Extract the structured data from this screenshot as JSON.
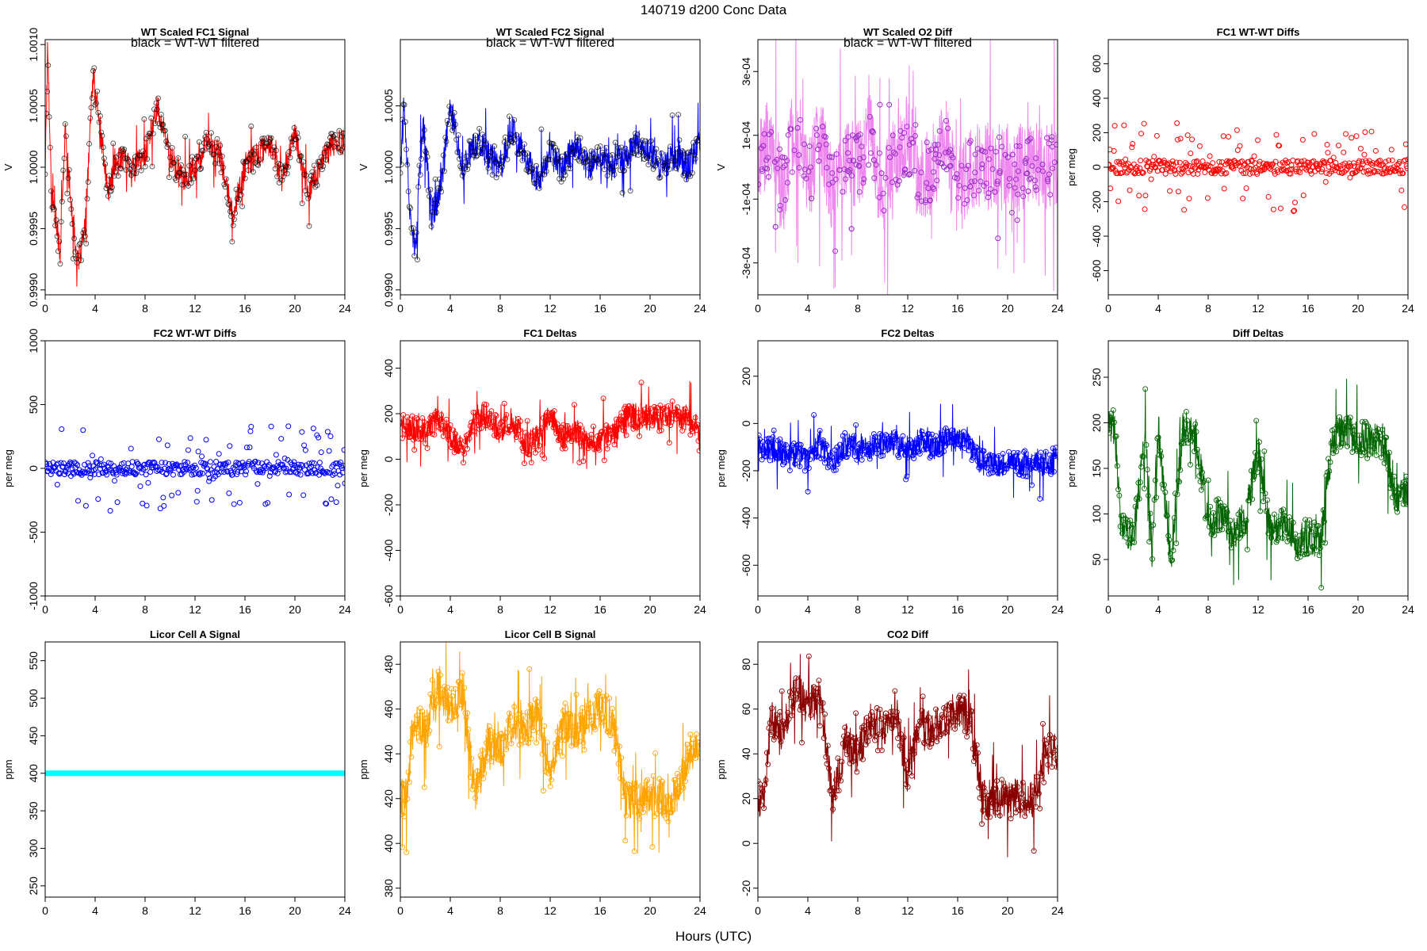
{
  "page": {
    "title": "140719    d200    Conc Data",
    "xlabel": "Hours (UTC)"
  },
  "chart_data": [
    {
      "id": "p1",
      "type": "line",
      "title": "WT Scaled FC1 Signal",
      "annotation": "black = WT-WT filtered",
      "ylabel": "V",
      "xlim": [
        0,
        24
      ],
      "ylim": [
        0.99896,
        1.00104
      ],
      "xticks": [
        0,
        4,
        8,
        12,
        16,
        20,
        24
      ],
      "yticks": [
        0.999,
        0.9995,
        1.0,
        1.0005,
        1.001
      ],
      "ytick_labels": [
        "0.9990",
        "0.9995",
        "1.0000",
        "1.0005",
        "1.0010"
      ],
      "color": "#ff0000",
      "overlay_color": "#000000",
      "anchors": [
        [
          0,
          1.0
        ],
        [
          0.2,
          1.001
        ],
        [
          0.5,
          0.9998
        ],
        [
          0.8,
          0.9996
        ],
        [
          1.2,
          0.9993
        ],
        [
          1.6,
          1.0003
        ],
        [
          2.0,
          0.9998
        ],
        [
          2.6,
          0.9992
        ],
        [
          3.2,
          0.9995
        ],
        [
          3.8,
          1.0007
        ],
        [
          4.2,
          1.0005
        ],
        [
          5,
          0.9998
        ],
        [
          6,
          1.0001
        ],
        [
          7,
          1.0
        ],
        [
          8,
          1.0001
        ],
        [
          9,
          1.0005
        ],
        [
          10,
          1.0001
        ],
        [
          11,
          0.9999
        ],
        [
          12,
          1.0
        ],
        [
          13,
          1.0002
        ],
        [
          14,
          1.0001
        ],
        [
          15,
          0.9996
        ],
        [
          16,
          1.0
        ],
        [
          17,
          1.0001
        ],
        [
          18,
          1.0002
        ],
        [
          19,
          0.9999
        ],
        [
          20,
          1.0003
        ],
        [
          21,
          0.9998
        ],
        [
          22,
          1.0
        ],
        [
          23,
          1.0002
        ],
        [
          24,
          1.0002
        ]
      ],
      "noise": 0.00022,
      "markers": true,
      "pattern": "line",
      "points": []
    },
    {
      "id": "p2",
      "type": "line",
      "title": "WT Scaled FC2 Signal",
      "annotation": "black = WT-WT filtered",
      "ylabel": "V",
      "xlim": [
        0,
        24
      ],
      "ylim": [
        0.99896,
        1.00104
      ],
      "xticks": [
        0,
        4,
        8,
        12,
        16,
        20,
        24
      ],
      "yticks": [
        0.999,
        0.9995,
        1.0,
        1.0005
      ],
      "ytick_labels": [
        "0.9990",
        "0.9995",
        "1.0000",
        "1.0005"
      ],
      "color": "#0000ff",
      "overlay_color": "#000000",
      "anchors": [
        [
          0,
          1.0
        ],
        [
          0.3,
          1.0005
        ],
        [
          0.8,
          0.9996
        ],
        [
          1.2,
          0.9993
        ],
        [
          1.8,
          1.0004
        ],
        [
          2.5,
          0.9996
        ],
        [
          3.2,
          0.9998
        ],
        [
          4,
          1.0005
        ],
        [
          5,
          1.0
        ],
        [
          6,
          1.0002
        ],
        [
          7,
          1.0001
        ],
        [
          8,
          1.0
        ],
        [
          9,
          1.0003
        ],
        [
          10,
          1.0001
        ],
        [
          11,
          0.9999
        ],
        [
          12,
          1.0001
        ],
        [
          13,
          1.0
        ],
        [
          14,
          1.0002
        ],
        [
          15,
          1.0
        ],
        [
          16,
          1.0001
        ],
        [
          17,
          1.0
        ],
        [
          18,
          1.0001
        ],
        [
          19,
          1.0002
        ],
        [
          20,
          1.0001
        ],
        [
          21,
          1.0
        ],
        [
          22,
          1.0001
        ],
        [
          23,
          1.0
        ],
        [
          24,
          1.0002
        ]
      ],
      "noise": 0.00025,
      "markers": true,
      "pattern": "line",
      "points": []
    },
    {
      "id": "p3",
      "type": "area",
      "title": "WT Scaled O2 Diff",
      "annotation": "black = WT-WT filtered",
      "ylabel": "V",
      "xlim": [
        0,
        24
      ],
      "ylim": [
        -0.0004,
        0.0004
      ],
      "xticks": [
        0,
        4,
        8,
        12,
        16,
        20,
        24
      ],
      "yticks": [
        -0.0003,
        -0.0001,
        0.0001,
        0.0003
      ],
      "ytick_labels": [
        "-3e-04",
        "-1e-04",
        "1e-04",
        "3e-04"
      ],
      "color": "#ee82ee",
      "overlay_color": "#9b30c8",
      "anchors": [
        [
          0,
          0.0
        ],
        [
          1,
          0.0001
        ],
        [
          2,
          -0.0001
        ],
        [
          3,
          0.00015
        ],
        [
          4,
          -5e-05
        ],
        [
          5,
          0.0001
        ],
        [
          6,
          -0.0001
        ],
        [
          7,
          5e-05
        ],
        [
          8,
          0.0
        ],
        [
          9,
          0.0001
        ],
        [
          10,
          -0.0001
        ],
        [
          11,
          5e-05
        ],
        [
          12,
          0.0001
        ],
        [
          13,
          -5e-05
        ],
        [
          14,
          0.0
        ],
        [
          15,
          0.0001
        ],
        [
          16,
          -0.0001
        ],
        [
          17,
          0.0
        ],
        [
          18,
          0.0
        ],
        [
          19,
          0.0
        ],
        [
          20,
          0.0
        ],
        [
          21,
          0.0
        ],
        [
          22,
          0.0
        ],
        [
          23,
          0.0
        ],
        [
          24,
          0.0
        ]
      ],
      "noise": 0.00028,
      "markers": true,
      "pattern": "band",
      "points": []
    },
    {
      "id": "p4",
      "type": "scatter",
      "title": "FC1 WT-WT Diffs",
      "ylabel": "per meg",
      "xlim": [
        0,
        24
      ],
      "ylim": [
        -740,
        740
      ],
      "xticks": [
        0,
        4,
        8,
        12,
        16,
        20,
        24
      ],
      "yticks": [
        -600,
        -400,
        -200,
        0,
        200,
        400,
        600
      ],
      "ytick_labels": [
        "-600",
        "-400",
        "-200",
        "0",
        "200",
        "400",
        "600"
      ],
      "color": "#ff0000",
      "anchors": [
        [
          0,
          0
        ],
        [
          24,
          0
        ]
      ],
      "noise": 320,
      "markers": true,
      "pattern": "scatter",
      "points": []
    },
    {
      "id": "p5",
      "type": "scatter",
      "title": "FC2 WT-WT Diffs",
      "ylabel": "per meg",
      "xlim": [
        0,
        24
      ],
      "ylim": [
        -1000,
        1000
      ],
      "xticks": [
        0,
        4,
        8,
        12,
        16,
        20,
        24
      ],
      "yticks": [
        -1000,
        -500,
        0,
        500,
        1000
      ],
      "ytick_labels": [
        "-1000",
        "-500",
        "0",
        "500",
        "1000"
      ],
      "hlines": [
        1000,
        -1000
      ],
      "color": "#0000ff",
      "anchors": [
        [
          0,
          0
        ],
        [
          24,
          0
        ]
      ],
      "noise": 420,
      "markers": true,
      "pattern": "scatter",
      "points": []
    },
    {
      "id": "p6",
      "type": "line",
      "title": "FC1 Deltas",
      "ylabel": "per meg",
      "xlim": [
        0,
        24
      ],
      "ylim": [
        -600,
        520
      ],
      "xticks": [
        0,
        4,
        8,
        12,
        16,
        20,
        24
      ],
      "yticks": [
        -600,
        -400,
        -200,
        0,
        200,
        400
      ],
      "ytick_labels": [
        "-600",
        "-400",
        "-200",
        "0",
        "200",
        "400"
      ],
      "color": "#ff0000",
      "anchors": [
        [
          0,
          150
        ],
        [
          2,
          120
        ],
        [
          3,
          180
        ],
        [
          4,
          100
        ],
        [
          5,
          50
        ],
        [
          6,
          190
        ],
        [
          7,
          180
        ],
        [
          8,
          120
        ],
        [
          9,
          180
        ],
        [
          10,
          60
        ],
        [
          11,
          90
        ],
        [
          12,
          200
        ],
        [
          13,
          100
        ],
        [
          14,
          120
        ],
        [
          15,
          80
        ],
        [
          16,
          90
        ],
        [
          17,
          100
        ],
        [
          18,
          180
        ],
        [
          19,
          190
        ],
        [
          20,
          185
        ],
        [
          21,
          180
        ],
        [
          22,
          190
        ],
        [
          23,
          180
        ],
        [
          24,
          120
        ]
      ],
      "noise": 120,
      "markers": true,
      "pattern": "line",
      "points": []
    },
    {
      "id": "p7",
      "type": "line",
      "title": "FC2 Deltas",
      "ylabel": "per meg",
      "xlim": [
        0,
        24
      ],
      "ylim": [
        -730,
        350
      ],
      "xticks": [
        0,
        4,
        8,
        12,
        16,
        20,
        24
      ],
      "yticks": [
        -600,
        -400,
        -200,
        0,
        200
      ],
      "ytick_labels": [
        "-600",
        "-400",
        "-200",
        "0",
        "200"
      ],
      "color": "#0000ff",
      "anchors": [
        [
          0,
          -100
        ],
        [
          2,
          -120
        ],
        [
          4,
          -150
        ],
        [
          5,
          -80
        ],
        [
          6,
          -170
        ],
        [
          7,
          -90
        ],
        [
          8,
          -100
        ],
        [
          9,
          -100
        ],
        [
          10,
          -90
        ],
        [
          11,
          -80
        ],
        [
          12,
          -120
        ],
        [
          13,
          -70
        ],
        [
          14,
          -100
        ],
        [
          15,
          -60
        ],
        [
          16,
          -70
        ],
        [
          17,
          -100
        ],
        [
          18,
          -170
        ],
        [
          19,
          -170
        ],
        [
          20,
          -175
        ],
        [
          21,
          -170
        ],
        [
          22,
          -170
        ],
        [
          23,
          -170
        ],
        [
          24,
          -150
        ]
      ],
      "noise": 110,
      "markers": true,
      "pattern": "line",
      "points": []
    },
    {
      "id": "p8",
      "type": "line",
      "title": "Diff Deltas",
      "ylabel": "per meg",
      "xlim": [
        0,
        24
      ],
      "ylim": [
        10,
        290
      ],
      "xticks": [
        0,
        4,
        8,
        12,
        16,
        20,
        24
      ],
      "yticks": [
        50,
        100,
        150,
        200,
        250
      ],
      "ytick_labels": [
        "50",
        "100",
        "150",
        "200",
        "250"
      ],
      "color": "#006400",
      "anchors": [
        [
          0,
          195
        ],
        [
          0.5,
          195
        ],
        [
          1,
          90
        ],
        [
          2,
          70
        ],
        [
          3,
          190
        ],
        [
          3.5,
          60
        ],
        [
          4,
          195
        ],
        [
          5,
          50
        ],
        [
          6,
          195
        ],
        [
          7,
          190
        ],
        [
          8,
          90
        ],
        [
          9,
          100
        ],
        [
          10,
          80
        ],
        [
          11,
          95
        ],
        [
          12,
          170
        ],
        [
          13,
          80
        ],
        [
          14,
          90
        ],
        [
          15,
          70
        ],
        [
          16,
          75
        ],
        [
          17,
          70
        ],
        [
          18,
          185
        ],
        [
          19,
          190
        ],
        [
          20,
          183
        ],
        [
          21,
          180
        ],
        [
          22,
          180
        ],
        [
          23,
          120
        ],
        [
          24,
          130
        ]
      ],
      "noise": 40,
      "markers": true,
      "pattern": "line",
      "points": []
    },
    {
      "id": "p9",
      "type": "line",
      "title": "Licor Cell A Signal",
      "ylabel": "ppm",
      "xlim": [
        0,
        24
      ],
      "ylim": [
        235,
        575
      ],
      "xticks": [
        0,
        4,
        8,
        12,
        16,
        20,
        24
      ],
      "yticks": [
        250,
        300,
        350,
        400,
        450,
        500,
        550
      ],
      "ytick_labels": [
        "250",
        "300",
        "350",
        "400",
        "450",
        "500",
        "550"
      ],
      "color": "#00ffff",
      "anchors": [
        [
          0,
          400
        ],
        [
          24,
          400
        ]
      ],
      "noise": 0,
      "markers": false,
      "pattern": "flat",
      "points": []
    },
    {
      "id": "p10",
      "type": "line",
      "title": "Licor Cell B Signal",
      "ylabel": "ppm",
      "xlim": [
        0,
        24
      ],
      "ylim": [
        376,
        490
      ],
      "xticks": [
        0,
        4,
        8,
        12,
        16,
        20,
        24
      ],
      "yticks": [
        380,
        400,
        420,
        440,
        460,
        480
      ],
      "ytick_labels": [
        "380",
        "400",
        "420",
        "440",
        "460",
        "480"
      ],
      "color": "#ffa500",
      "anchors": [
        [
          0,
          420
        ],
        [
          0.5,
          420
        ],
        [
          1,
          455
        ],
        [
          2,
          450
        ],
        [
          3,
          470
        ],
        [
          4,
          460
        ],
        [
          5,
          468
        ],
        [
          6,
          420
        ],
        [
          7,
          445
        ],
        [
          8,
          440
        ],
        [
          9,
          455
        ],
        [
          10,
          450
        ],
        [
          11,
          460
        ],
        [
          12,
          430
        ],
        [
          13,
          455
        ],
        [
          14,
          450
        ],
        [
          15,
          455
        ],
        [
          16,
          460
        ],
        [
          17,
          455
        ],
        [
          18,
          420
        ],
        [
          19,
          420
        ],
        [
          20,
          420
        ],
        [
          21,
          420
        ],
        [
          22,
          420
        ],
        [
          23,
          440
        ],
        [
          24,
          440
        ]
      ],
      "noise": 18,
      "markers": true,
      "pattern": "line",
      "points": []
    },
    {
      "id": "p11",
      "type": "line",
      "title": "CO2 Diff",
      "ylabel": "ppm",
      "xlim": [
        0,
        24
      ],
      "ylim": [
        -24,
        90
      ],
      "xticks": [
        0,
        4,
        8,
        12,
        16,
        20,
        24
      ],
      "yticks": [
        -20,
        0,
        20,
        40,
        60,
        80
      ],
      "ytick_labels": [
        "-20",
        "0",
        "20",
        "40",
        "60",
        "80"
      ],
      "color": "#8b0000",
      "anchors": [
        [
          0,
          20
        ],
        [
          0.5,
          20
        ],
        [
          1,
          55
        ],
        [
          2,
          50
        ],
        [
          3,
          70
        ],
        [
          4,
          60
        ],
        [
          5,
          68
        ],
        [
          6,
          20
        ],
        [
          7,
          45
        ],
        [
          8,
          40
        ],
        [
          9,
          55
        ],
        [
          10,
          50
        ],
        [
          11,
          60
        ],
        [
          12,
          30
        ],
        [
          13,
          55
        ],
        [
          14,
          50
        ],
        [
          15,
          55
        ],
        [
          16,
          60
        ],
        [
          17,
          55
        ],
        [
          18,
          20
        ],
        [
          19,
          20
        ],
        [
          20,
          20
        ],
        [
          21,
          20
        ],
        [
          22,
          20
        ],
        [
          23,
          40
        ],
        [
          24,
          40
        ]
      ],
      "noise": 18,
      "markers": true,
      "pattern": "line",
      "points": []
    }
  ]
}
